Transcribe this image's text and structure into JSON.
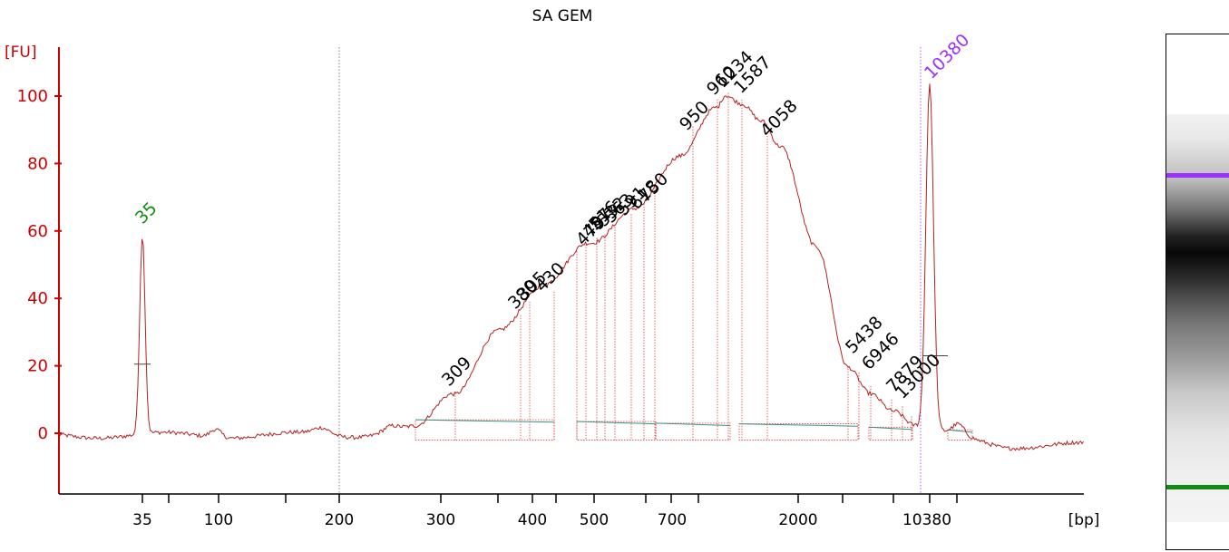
{
  "chart_data": {
    "type": "line",
    "title": "SA GEM",
    "ylabel": "[FU]",
    "xlabel": "[bp]",
    "ylim": [
      -17,
      115
    ],
    "yticks": [
      0,
      20,
      40,
      60,
      80,
      100
    ],
    "xticks": [
      "35",
      "100",
      "200",
      "300",
      "400",
      "500",
      "700",
      "2000",
      "10380"
    ],
    "colors": {
      "trace": "#b22222",
      "axis": "#cc0000",
      "lower_marker": "#138a13",
      "upper_marker": "#9b30ff",
      "baseline": "#3e8e7e"
    },
    "markers": [
      {
        "label": "35",
        "value": 59,
        "color": "#138a13"
      },
      {
        "label": "10380",
        "value": 103,
        "color": "#9b30ff"
      }
    ],
    "peak_labels": [
      "309",
      "380",
      "395",
      "430",
      "479",
      "487",
      "516",
      "532",
      "563",
      "591",
      "618",
      "750",
      "950",
      "960",
      "1234",
      "1587",
      "4058",
      "5438",
      "6946",
      "7879",
      "13000"
    ]
  },
  "gel": {
    "upper_band_color": "#9b30ff",
    "lower_band_color": "#138a13"
  }
}
